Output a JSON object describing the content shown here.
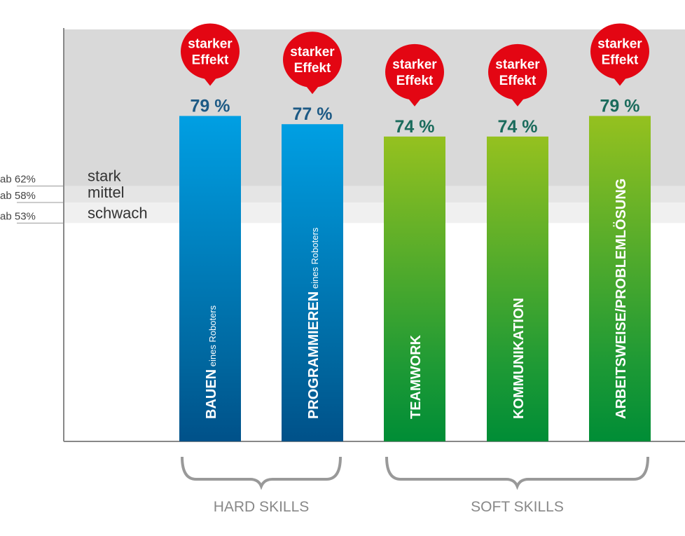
{
  "chart_data": {
    "type": "bar",
    "categories": [
      {
        "main": "BAUEN",
        "sub": "eines Roboters"
      },
      {
        "main": "PROGRAMMIEREN",
        "sub": "eines Roboters"
      },
      {
        "main": "TEAMWORK",
        "sub": ""
      },
      {
        "main": "KOMMUNIKATION",
        "sub": ""
      },
      {
        "main": "ARBEITSWEISE/PROBLEMLÖSUNG",
        "sub": ""
      }
    ],
    "values": [
      79,
      77,
      74,
      74,
      79
    ],
    "value_labels": [
      "79 %",
      "77 %",
      "74 %",
      "74 %",
      "79 %"
    ],
    "badges": [
      "starker Effekt",
      "starker Effekt",
      "starker Effekt",
      "starker Effekt",
      "starker Effekt"
    ],
    "ylim": [
      0,
      100
    ],
    "thresholds": [
      {
        "label": "ab 62%",
        "value": 62,
        "name": "stark"
      },
      {
        "label": "ab 58%",
        "value": 58,
        "name": "mittel"
      },
      {
        "label": "ab 53%",
        "value": 53,
        "name": "schwach"
      }
    ],
    "groups": [
      {
        "label": "HARD SKILLS",
        "members": [
          0,
          1
        ],
        "color": "#0a6fb8"
      },
      {
        "label": "SOFT SKILLS",
        "members": [
          2,
          3,
          4
        ],
        "color": "#4aaa2a"
      }
    ],
    "colors": {
      "hard_top": "#009fe3",
      "hard_bottom": "#005189",
      "soft_top": "#95c11f",
      "soft_bottom": "#008d36",
      "badge": "#e30613",
      "hard_value": "#1d5a85",
      "soft_value": "#1a6b5c",
      "band_stark": "#d9d9d9",
      "band_mittel": "#e5e5e5",
      "band_schwach": "#f0f0f0"
    }
  }
}
